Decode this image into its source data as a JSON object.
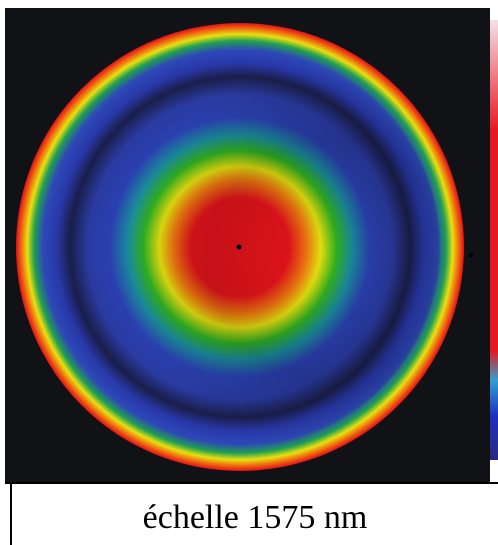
{
  "caption": "échelle 1575 nm"
}
